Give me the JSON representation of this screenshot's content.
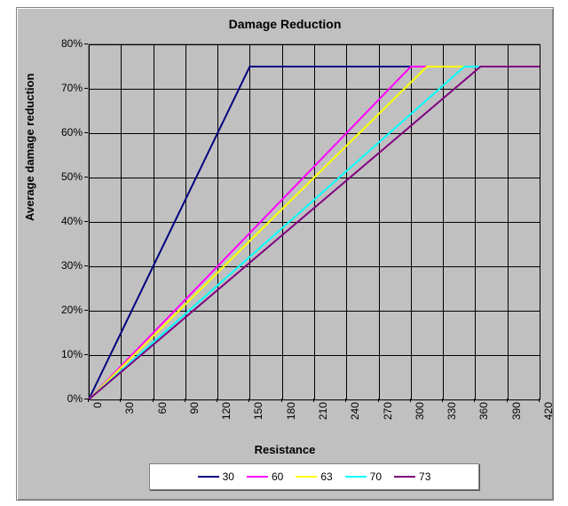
{
  "chart": {
    "type": "line",
    "title": "Damage Reduction",
    "x_axis": {
      "title": "Resistance",
      "min": 0,
      "max": 420,
      "tick_step": 30,
      "ticks": [
        0,
        30,
        60,
        90,
        120,
        150,
        180,
        210,
        240,
        270,
        300,
        330,
        360,
        390,
        420
      ]
    },
    "y_axis": {
      "title": "Average damage reduction",
      "min": 0,
      "max": 80,
      "tick_step": 10,
      "ticks": [
        0,
        10,
        20,
        30,
        40,
        50,
        60,
        70,
        80
      ],
      "suffix": "%"
    },
    "plot_background": "#c0c0c0",
    "outer_background": "#c0c0c0",
    "grid_color": "#000000",
    "axis_color": "#808080",
    "title_fontsize": 14,
    "axis_title_fontsize": 13,
    "tick_fontsize": 12,
    "series": [
      {
        "name": "30",
        "color": "#000080",
        "width": 2,
        "points": [
          [
            0,
            0
          ],
          [
            150,
            75
          ],
          [
            420,
            75
          ]
        ]
      },
      {
        "name": "60",
        "color": "#ff00ff",
        "width": 2,
        "points": [
          [
            0,
            0
          ],
          [
            300,
            75
          ],
          [
            420,
            75
          ]
        ]
      },
      {
        "name": "63",
        "color": "#ffff00",
        "width": 2,
        "points": [
          [
            0,
            0
          ],
          [
            315,
            75
          ],
          [
            420,
            75
          ]
        ]
      },
      {
        "name": "70",
        "color": "#00ffff",
        "width": 2,
        "points": [
          [
            0,
            0
          ],
          [
            350,
            75
          ],
          [
            420,
            75
          ]
        ]
      },
      {
        "name": "73",
        "color": "#800080",
        "width": 2,
        "points": [
          [
            0,
            0
          ],
          [
            365,
            75
          ],
          [
            420,
            75
          ]
        ]
      }
    ],
    "legend": {
      "position": "bottom",
      "background": "#ffffff",
      "border": "#808080"
    }
  }
}
